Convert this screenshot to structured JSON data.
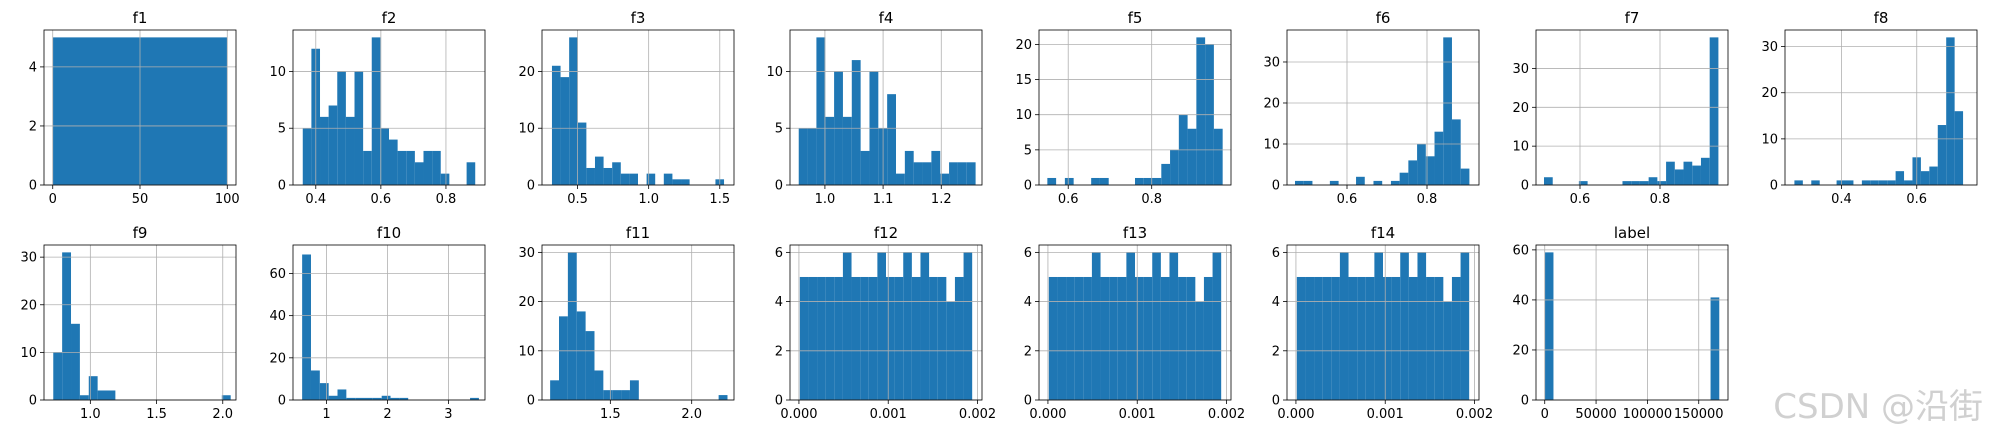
{
  "chart_data": [
    {
      "title": "f1",
      "type": "bar",
      "xlim": [
        -5,
        105
      ],
      "ylim": [
        0,
        5.25
      ],
      "xticks": [
        0,
        50,
        100
      ],
      "xtick_labels": [
        "0",
        "50",
        "100"
      ],
      "yticks": [
        0,
        2,
        4
      ],
      "ytick_labels": [
        "0",
        "2",
        "4"
      ],
      "bin_start": 0,
      "bin_width": 100,
      "values": [
        5
      ]
    },
    {
      "title": "f2",
      "type": "bar",
      "xlim": [
        0.33,
        0.92
      ],
      "ylim": [
        0,
        13.65
      ],
      "xticks": [
        0.4,
        0.6,
        0.8
      ],
      "xtick_labels": [
        "0.4",
        "0.6",
        "0.8"
      ],
      "yticks": [
        0,
        5,
        10
      ],
      "ytick_labels": [
        "0",
        "5",
        "10"
      ],
      "bin_start": 0.36,
      "bin_width": 0.0265,
      "values": [
        5,
        12,
        6,
        7,
        10,
        6,
        10,
        3,
        13,
        5,
        4,
        3,
        3,
        2,
        3,
        3,
        1,
        0,
        0,
        2
      ]
    },
    {
      "title": "f3",
      "type": "bar",
      "xlim": [
        0.25,
        1.6
      ],
      "ylim": [
        0,
        27.3
      ],
      "xticks": [
        0.5,
        1.0,
        1.5
      ],
      "xtick_labels": [
        "0.5",
        "1.0",
        "1.5"
      ],
      "yticks": [
        0,
        10,
        20
      ],
      "ytick_labels": [
        "0",
        "10",
        "20"
      ],
      "bin_start": 0.32,
      "bin_width": 0.0605,
      "values": [
        21,
        19,
        26,
        11,
        3,
        5,
        3,
        4,
        2,
        2,
        0,
        2,
        0,
        2,
        1,
        1,
        0,
        0,
        0,
        1
      ]
    },
    {
      "title": "f4",
      "type": "bar",
      "xlim": [
        0.94,
        1.27
      ],
      "ylim": [
        0,
        13.65
      ],
      "xticks": [
        1.0,
        1.1,
        1.2
      ],
      "xtick_labels": [
        "1.0",
        "1.1",
        "1.2"
      ],
      "yticks": [
        0,
        5,
        10
      ],
      "ytick_labels": [
        "0",
        "5",
        "10"
      ],
      "bin_start": 0.955,
      "bin_width": 0.0152,
      "values": [
        5,
        5,
        13,
        6,
        10,
        6,
        11,
        3,
        10,
        5,
        8,
        1,
        3,
        2,
        2,
        3,
        1,
        2,
        2,
        2
      ]
    },
    {
      "title": "f5",
      "type": "bar",
      "xlim": [
        0.53,
        0.99
      ],
      "ylim": [
        0,
        22.05
      ],
      "xticks": [
        0.6,
        0.8
      ],
      "xtick_labels": [
        "0.6",
        "0.8"
      ],
      "yticks": [
        0,
        5,
        10,
        15,
        20
      ],
      "ytick_labels": [
        "0",
        "5",
        "10",
        "15",
        "20"
      ],
      "bin_start": 0.55,
      "bin_width": 0.021,
      "values": [
        1,
        0,
        1,
        0,
        0,
        1,
        1,
        0,
        0,
        0,
        1,
        1,
        1,
        3,
        5,
        10,
        8,
        21,
        20,
        8
      ]
    },
    {
      "title": "f6",
      "type": "bar",
      "xlim": [
        0.45,
        0.93
      ],
      "ylim": [
        0,
        37.8
      ],
      "xticks": [
        0.6,
        0.8
      ],
      "xtick_labels": [
        "0.6",
        "0.8"
      ],
      "yticks": [
        0,
        10,
        20,
        30
      ],
      "ytick_labels": [
        "0",
        "10",
        "20",
        "30"
      ],
      "bin_start": 0.47,
      "bin_width": 0.0218,
      "values": [
        1,
        1,
        0,
        0,
        1,
        0,
        0,
        2,
        0,
        1,
        0,
        1,
        3,
        6,
        10,
        7,
        13,
        36,
        16,
        4
      ]
    },
    {
      "title": "f7",
      "type": "bar",
      "xlim": [
        0.49,
        0.97
      ],
      "ylim": [
        0,
        39.9
      ],
      "xticks": [
        0.6,
        0.8
      ],
      "xtick_labels": [
        "0.6",
        "0.8"
      ],
      "yticks": [
        0,
        10,
        20,
        30
      ],
      "ytick_labels": [
        "0",
        "10",
        "20",
        "30"
      ],
      "bin_start": 0.51,
      "bin_width": 0.0218,
      "values": [
        2,
        0,
        0,
        0,
        1,
        0,
        0,
        0,
        0,
        1,
        1,
        1,
        2,
        1,
        6,
        4,
        6,
        5,
        7,
        38
      ]
    },
    {
      "title": "f8",
      "type": "bar",
      "xlim": [
        0.25,
        0.76
      ],
      "ylim": [
        0,
        33.6
      ],
      "xticks": [
        0.4,
        0.6
      ],
      "xtick_labels": [
        "0.4",
        "0.6"
      ],
      "yticks": [
        0,
        10,
        20,
        30
      ],
      "ytick_labels": [
        "0",
        "10",
        "20",
        "30"
      ],
      "bin_start": 0.275,
      "bin_width": 0.0224,
      "values": [
        1,
        0,
        1,
        0,
        0,
        1,
        1,
        0,
        1,
        1,
        1,
        1,
        3,
        1,
        6,
        3,
        4,
        13,
        32,
        16
      ]
    },
    {
      "title": "f9",
      "type": "bar",
      "xlim": [
        0.65,
        2.1
      ],
      "ylim": [
        0,
        32.55
      ],
      "xticks": [
        1.0,
        1.5,
        2.0
      ],
      "xtick_labels": [
        "1.0",
        "1.5",
        "2.0"
      ],
      "yticks": [
        0,
        10,
        20,
        30
      ],
      "ytick_labels": [
        "0",
        "10",
        "20",
        "30"
      ],
      "bin_start": 0.72,
      "bin_width": 0.067,
      "values": [
        10,
        31,
        16,
        1,
        5,
        2,
        2,
        0,
        0,
        0,
        0,
        0,
        0,
        0,
        0,
        0,
        0,
        0,
        0,
        1
      ]
    },
    {
      "title": "f10",
      "type": "bar",
      "xlim": [
        0.45,
        3.6
      ],
      "ylim": [
        0,
        73.5
      ],
      "xticks": [
        1,
        2,
        3
      ],
      "xtick_labels": [
        "1",
        "2",
        "3"
      ],
      "yticks": [
        0,
        20,
        40,
        60
      ],
      "ytick_labels": [
        "0",
        "20",
        "40",
        "60"
      ],
      "bin_start": 0.6,
      "bin_width": 0.145,
      "values": [
        69,
        14,
        8,
        2,
        5,
        1,
        1,
        1,
        1,
        2,
        1,
        1,
        0,
        0,
        0,
        0,
        0,
        0,
        0,
        1
      ]
    },
    {
      "title": "f11",
      "type": "bar",
      "xlim": [
        1.08,
        2.26
      ],
      "ylim": [
        0,
        31.5
      ],
      "xticks": [
        1.5,
        2.0
      ],
      "xtick_labels": [
        "1.5",
        "2.0"
      ],
      "yticks": [
        0,
        10,
        20,
        30
      ],
      "ytick_labels": [
        "0",
        "10",
        "20",
        "30"
      ],
      "bin_start": 1.13,
      "bin_width": 0.0545,
      "values": [
        4,
        17,
        30,
        18,
        14,
        6,
        2,
        2,
        2,
        4,
        0,
        0,
        0,
        0,
        0,
        0,
        0,
        0,
        0,
        1
      ]
    },
    {
      "title": "f12",
      "type": "bar",
      "xlim": [
        -0.0001,
        0.00205
      ],
      "ylim": [
        0,
        6.3
      ],
      "xticks": [
        0.0,
        0.001,
        0.002
      ],
      "xtick_labels": [
        "0.000",
        "0.001",
        "0.002"
      ],
      "yticks": [
        0,
        2,
        4,
        6
      ],
      "ytick_labels": [
        "0",
        "2",
        "4",
        "6"
      ],
      "bin_start": 1e-05,
      "bin_width": 9.65e-05,
      "values": [
        5,
        5,
        5,
        5,
        5,
        6,
        5,
        5,
        5,
        6,
        5,
        5,
        6,
        5,
        6,
        5,
        5,
        4,
        5,
        6
      ]
    },
    {
      "title": "f13",
      "type": "bar",
      "xlim": [
        -0.0001,
        0.00205
      ],
      "ylim": [
        0,
        6.3
      ],
      "xticks": [
        0.0,
        0.001,
        0.002
      ],
      "xtick_labels": [
        "0.000",
        "0.001",
        "0.002"
      ],
      "yticks": [
        0,
        2,
        4,
        6
      ],
      "ytick_labels": [
        "0",
        "2",
        "4",
        "6"
      ],
      "bin_start": 1e-05,
      "bin_width": 9.65e-05,
      "values": [
        5,
        5,
        5,
        5,
        5,
        6,
        5,
        5,
        5,
        6,
        5,
        5,
        6,
        5,
        6,
        5,
        5,
        4,
        5,
        6
      ]
    },
    {
      "title": "f14",
      "type": "bar",
      "xlim": [
        -0.0001,
        0.00205
      ],
      "ylim": [
        0,
        6.3
      ],
      "xticks": [
        0.0,
        0.001,
        0.002
      ],
      "xtick_labels": [
        "0.000",
        "0.001",
        "0.002"
      ],
      "yticks": [
        0,
        2,
        4,
        6
      ],
      "ytick_labels": [
        "0",
        "2",
        "4",
        "6"
      ],
      "bin_start": 1e-05,
      "bin_width": 9.65e-05,
      "values": [
        5,
        5,
        5,
        5,
        5,
        6,
        5,
        5,
        5,
        6,
        5,
        5,
        6,
        5,
        6,
        5,
        5,
        4,
        5,
        6
      ]
    },
    {
      "title": "label",
      "type": "bar",
      "xlim": [
        -8500,
        178500
      ],
      "ylim": [
        0,
        61.95
      ],
      "xticks": [
        0,
        50000,
        100000,
        150000
      ],
      "xtick_labels": [
        "0",
        "50000",
        "100000",
        "150000"
      ],
      "yticks": [
        0,
        20,
        40,
        60
      ],
      "ytick_labels": [
        "0",
        "20",
        "40",
        "60"
      ],
      "bin_start": 0,
      "bin_width": 8500,
      "values": [
        59,
        0,
        0,
        0,
        0,
        0,
        0,
        0,
        0,
        0,
        0,
        0,
        0,
        0,
        0,
        0,
        0,
        0,
        0,
        41
      ]
    }
  ],
  "colors": {
    "bar": "#1f77b4",
    "grid": "#b0b0b0",
    "axis": "#000000"
  },
  "watermark": "CSDN @沿街"
}
